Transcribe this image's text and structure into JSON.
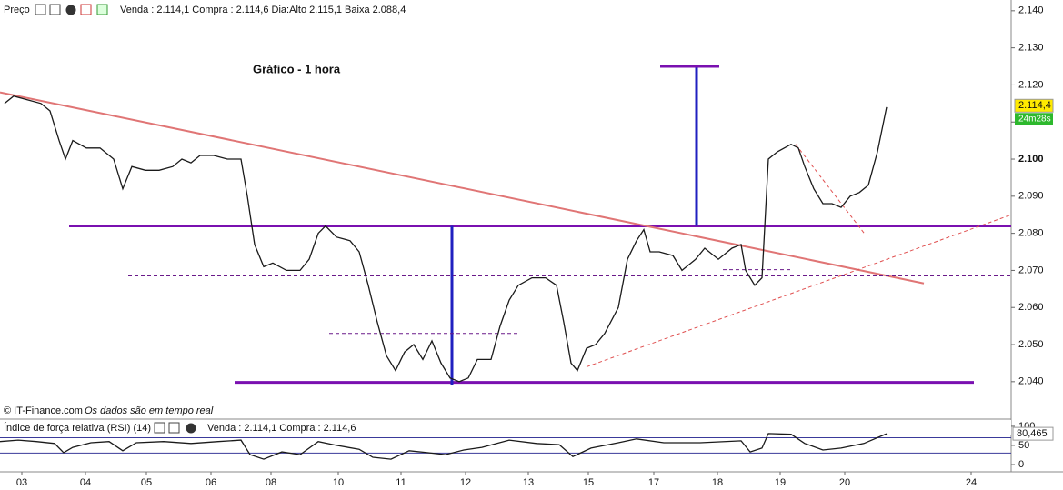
{
  "header": {
    "price_label": "Preço",
    "quote": "Venda : 2.114,1 Compra : 2.114,6 Dia:Alto 2.115,1 Baixa 2.088,4",
    "source": "© IT-Finance.com",
    "source_note": "Os dados são em tempo real",
    "rsi_label": "Índice de força relativa (RSI) (14)",
    "rsi_quote": "Venda : 2.114,1 Compra : 2.114,6"
  },
  "chart_data": [
    {
      "type": "line",
      "title": "Gráfico - 1 hora",
      "color": "#1a1a1a",
      "x": [
        0.5,
        1.5,
        3,
        4.5,
        5.5,
        6.5,
        7.2,
        8,
        9.5,
        11,
        12.5,
        13.5,
        14.5,
        16,
        17.5,
        19,
        20,
        21,
        22,
        23.5,
        25,
        26.5,
        27.2,
        28,
        29,
        30,
        31.5,
        33,
        34,
        35,
        35.8,
        37,
        38.5,
        39.5,
        40.5,
        41.5,
        42.5,
        43.5,
        44.5,
        45.5,
        46.5,
        47.5,
        48.5,
        49.5,
        50.5,
        51.5,
        52.5,
        54,
        55,
        56,
        57,
        58.5,
        60,
        61.2,
        62,
        62.8,
        63.5,
        64.5,
        65.5,
        66.5,
        68,
        69,
        70,
        70.8,
        71.5,
        72.5,
        74,
        75,
        76.5,
        77.5,
        79,
        80.5,
        81.5,
        82,
        83,
        83.8,
        84.5,
        85.5,
        87,
        87.8,
        88.5,
        89.5,
        90.5,
        91.5,
        92.5,
        93.5,
        94.5,
        95.5,
        96.5,
        97.5
      ],
      "values": [
        2.115,
        2.117,
        2.116,
        2.115,
        2.113,
        2.105,
        2.1,
        2.105,
        2.103,
        2.103,
        2.1,
        2.092,
        2.098,
        2.097,
        2.097,
        2.098,
        2.1,
        2.099,
        2.101,
        2.101,
        2.1,
        2.1,
        2.09,
        2.077,
        2.071,
        2.072,
        2.07,
        2.07,
        2.073,
        2.08,
        2.082,
        2.079,
        2.078,
        2.075,
        2.066,
        2.056,
        2.047,
        2.043,
        2.048,
        2.05,
        2.046,
        2.051,
        2.045,
        2.041,
        2.04,
        2.041,
        2.046,
        2.046,
        2.055,
        2.062,
        2.066,
        2.068,
        2.068,
        2.066,
        2.056,
        2.045,
        2.043,
        2.049,
        2.05,
        2.053,
        2.06,
        2.073,
        2.078,
        2.081,
        2.075,
        2.075,
        2.074,
        2.07,
        2.073,
        2.076,
        2.073,
        2.076,
        2.077,
        2.07,
        2.066,
        2.068,
        2.1,
        2.102,
        2.104,
        2.103,
        2.098,
        2.092,
        2.088,
        2.088,
        2.087,
        2.09,
        2.091,
        2.093,
        2.102,
        2.114
      ],
      "xlim": [
        0,
        111.2
      ],
      "ylim": [
        2.0304,
        2.1429
      ],
      "xticks": [
        {
          "value": 2.4,
          "label": "03"
        },
        {
          "value": 9.4,
          "label": "04"
        },
        {
          "value": 16.1,
          "label": "05"
        },
        {
          "value": 23.2,
          "label": "06"
        },
        {
          "value": 29.8,
          "label": "08"
        },
        {
          "value": 37.2,
          "label": "10"
        },
        {
          "value": 44.1,
          "label": "11"
        },
        {
          "value": 51.2,
          "label": "12"
        },
        {
          "value": 58.1,
          "label": "13"
        },
        {
          "value": 64.7,
          "label": "15"
        },
        {
          "value": 71.9,
          "label": "17"
        },
        {
          "value": 78.9,
          "label": "18"
        },
        {
          "value": 85.8,
          "label": "19"
        },
        {
          "value": 92.9,
          "label": "20"
        },
        {
          "value": 106.8,
          "label": "24"
        }
      ],
      "yticks": [
        {
          "value": 2.04,
          "label": "2.040"
        },
        {
          "value": 2.05,
          "label": "2.050"
        },
        {
          "value": 2.06,
          "label": "2.060"
        },
        {
          "value": 2.07,
          "label": "2.070"
        },
        {
          "value": 2.08,
          "label": "2.080"
        },
        {
          "value": 2.09,
          "label": "2.090"
        },
        {
          "value": 2.1,
          "label": "2.100"
        },
        {
          "value": 2.11,
          "label": "2.110"
        },
        {
          "value": 2.12,
          "label": "2.120"
        },
        {
          "value": 2.13,
          "label": "2.130"
        },
        {
          "value": 2.14,
          "label": "2.140"
        }
      ],
      "last_price": {
        "value": 2.1144,
        "label": "2.114,4"
      },
      "timer": "24m28s",
      "annotations": [
        {
          "x": [
            7.6,
            111.2
          ],
          "y": [
            2.082,
            2.082
          ],
          "color": "#7a10b0",
          "style": "solid"
        },
        {
          "x": [
            25.8,
            107.1
          ],
          "y": [
            2.0398,
            2.0398
          ],
          "color": "#7a10b0",
          "style": "solid"
        },
        {
          "x": [
            0,
            101.6
          ],
          "y": [
            2.118,
            2.0665
          ],
          "color": "#e07575",
          "style": "solid"
        },
        {
          "x": [
            49.7,
            49.7
          ],
          "y": [
            2.082,
            2.039
          ],
          "color": "#2020c0",
          "style": "solid"
        },
        {
          "x": [
            76.6,
            76.6
          ],
          "y": [
            2.125,
            2.082
          ],
          "color": "#2020c0",
          "style": "solid"
        },
        {
          "x": [
            72.6,
            79.1
          ],
          "y": [
            2.125,
            2.125
          ],
          "color": "#7a10b0",
          "style": "solid"
        },
        {
          "x": [
            14.1,
            111.2
          ],
          "y": [
            2.0685,
            2.0685
          ],
          "color": "#6a1a8a",
          "style": "dashed"
        },
        {
          "x": [
            36.2,
            57.2
          ],
          "y": [
            2.053,
            2.053
          ],
          "color": "#6a1a8a",
          "style": "dashed"
        },
        {
          "x": [
            79.5,
            87
          ],
          "y": [
            2.0702,
            2.0702
          ],
          "color": "#6a1a8a",
          "style": "dashed"
        },
        {
          "x": [
            64.5,
            111.2
          ],
          "y": [
            2.044,
            2.085
          ],
          "color": "#e05050",
          "style": "dashed"
        },
        {
          "x": [
            87.5,
            95.2
          ],
          "y": [
            2.104,
            2.0795
          ],
          "color": "#e05050",
          "style": "dashed"
        }
      ]
    },
    {
      "type": "line",
      "color": "#1a1a1a",
      "x": [
        0,
        2,
        4,
        6,
        7,
        8,
        10,
        12,
        13.5,
        15,
        18,
        21,
        24,
        26.5,
        27.5,
        29,
        31,
        33,
        35,
        37,
        39.5,
        41,
        43,
        45,
        47,
        49,
        51,
        53,
        56,
        59,
        61.5,
        63,
        65,
        68,
        70,
        73,
        77,
        81.5,
        82.5,
        83.8,
        84.5,
        87,
        88.5,
        90.5,
        92.5,
        95,
        97.5
      ],
      "values": [
        60,
        64,
        60,
        55,
        31,
        45,
        57,
        60,
        36,
        57,
        60,
        55,
        60,
        64,
        26,
        14,
        33,
        26,
        60,
        50,
        40,
        19,
        14,
        36,
        31,
        26,
        38,
        45,
        64,
        55,
        52,
        21,
        43,
        57,
        67,
        57,
        57,
        62,
        33,
        43,
        81,
        79,
        55,
        38,
        43,
        55,
        80.5
      ],
      "ylim": [
        -19,
        114
      ],
      "yticks": [
        0,
        50,
        100
      ],
      "levels": [
        30,
        70
      ],
      "level_color": "#3a3a9a",
      "last_value": {
        "value": 80.465,
        "label": "80,465"
      }
    }
  ]
}
